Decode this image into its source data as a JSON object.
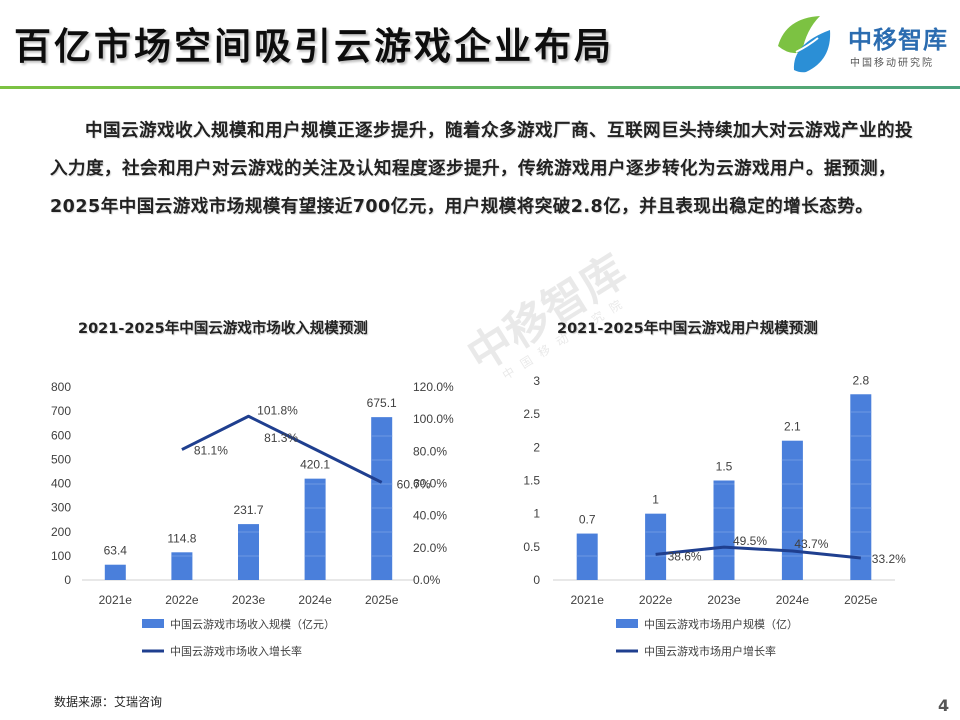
{
  "header": {
    "title": "百亿市场空间吸引云游戏企业布局",
    "logo_name": "中移智库",
    "logo_sub": "中国移动研究院"
  },
  "intro": {
    "text": "中国云游戏收入规模和用户规模正逐步提升，随着众多游戏厂商、互联网巨头持续加大对云游戏产业的投入力度，社会和用户对云游戏的关注及认知程度逐步提升，传统游戏用户逐步转化为云游戏用户。据预测， 2025年中国云游戏市场规模有望接近700亿元，用户规模将突破2.8亿，并且表现出稳定的增长态势。"
  },
  "watermark": {
    "big": "中移智库",
    "small": "中国移动研究院"
  },
  "colors": {
    "bar": "#4a7fdb",
    "line": "#1f3f8f",
    "accent": "#7cc242"
  },
  "chart_data": [
    {
      "type": "bar",
      "title": "2021-2025年中国云游戏市场收入规模预测",
      "categories": [
        "2021e",
        "2022e",
        "2023e",
        "2024e",
        "2025e"
      ],
      "series": [
        {
          "name": "中国云游戏市场收入规模（亿元）",
          "type": "bar",
          "axis": "left",
          "values": [
            63.4,
            114.8,
            231.7,
            420.1,
            675.1
          ],
          "labels": [
            "63.4",
            "114.8",
            "231.7",
            "420.1",
            "675.1"
          ]
        },
        {
          "name": "中国云游戏市场收入增长率",
          "type": "line",
          "axis": "right",
          "values": [
            null,
            81.1,
            101.8,
            81.3,
            60.7
          ],
          "labels": [
            "",
            "81.1%",
            "101.8%",
            "81.3%",
            "60.7%"
          ]
        }
      ],
      "y_left": {
        "min": 0,
        "max": 800,
        "step": 100,
        "ticks": [
          "0",
          "100",
          "200",
          "300",
          "400",
          "500",
          "600",
          "700",
          "800"
        ]
      },
      "y_right": {
        "min": 0,
        "max": 120,
        "step": 20,
        "ticks": [
          "0.0%",
          "20.0%",
          "40.0%",
          "60.0%",
          "80.0%",
          "100.0%",
          "120.0%"
        ]
      },
      "grid": false,
      "legend": "bottom"
    },
    {
      "type": "bar",
      "title": "2021-2025年中国云游戏用户规模预测",
      "categories": [
        "2021e",
        "2022e",
        "2023e",
        "2024e",
        "2025e"
      ],
      "series": [
        {
          "name": "中国云游戏市场用户规模（亿）",
          "type": "bar",
          "axis": "left",
          "values": [
            0.7,
            1,
            1.5,
            2.1,
            2.8
          ],
          "labels": [
            "0.7",
            "1",
            "1.5",
            "2.1",
            "2.8"
          ]
        },
        {
          "name": "中国云游戏市场用户增长率",
          "type": "line",
          "axis": "left",
          "values": [
            null,
            0.386,
            0.495,
            0.437,
            0.332
          ],
          "labels": [
            "",
            "38.6%",
            "49.5%",
            "43.7%",
            "33.2%"
          ]
        }
      ],
      "y_left": {
        "min": 0,
        "max": 3,
        "step": 0.5,
        "ticks": [
          "0",
          "0.5",
          "1",
          "1.5",
          "2",
          "2.5",
          "3"
        ]
      },
      "grid": false,
      "legend": "bottom"
    }
  ],
  "footer": {
    "source": "数据来源：艾瑞咨询",
    "page_number": "4"
  }
}
